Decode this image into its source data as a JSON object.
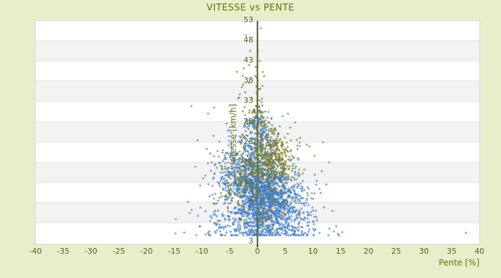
{
  "title": "VITESSE vs PENTE",
  "chart_data": {
    "type": "scatter",
    "title": "VITESSE vs PENTE",
    "xlabel": "Pente [%]",
    "ylabel": "Vitesse [km/h]",
    "xlim": [
      -40,
      40
    ],
    "ylim": [
      3,
      53
    ],
    "x_ticks": [
      -40,
      -35,
      -30,
      -25,
      -20,
      -15,
      -10,
      -5,
      0,
      5,
      10,
      15,
      20,
      25,
      30,
      35,
      40
    ],
    "y_ticks": [
      53,
      48,
      43,
      38,
      33,
      28,
      23,
      18,
      13,
      8,
      3
    ],
    "grid": "alternating horizontal bands every 5 units",
    "legend": "none",
    "marker": "small 3px plus/diamond",
    "seed": 42,
    "colors": {
      "background": "#e9edca",
      "title": "#667408",
      "tick": "#555f1a",
      "band_light": "#ffffff",
      "band_dark": "#f3f3f3",
      "band_line": "#e2e2e2",
      "plot_border": "#d4d4d4",
      "axis_line": "#4b5412",
      "series_blue": "#3f7fd6",
      "series_olive": "#7a7a1d"
    },
    "series": [
      {
        "name": "blue-points",
        "color": "#3f7fd6",
        "x_range": [
          -15.8,
          15.8
        ],
        "y_range": [
          4.5,
          37
        ],
        "clusters": [
          {
            "n": 850,
            "x_mean": 0.8,
            "x_sd": 2.1,
            "y_mean": 14.0,
            "y_sd": 4.0
          },
          {
            "n": 500,
            "x_mean": -2.6,
            "x_sd": 2.6,
            "y_mean": 17.0,
            "y_sd": 4.5
          },
          {
            "n": 430,
            "x_mean": 4.3,
            "x_sd": 2.7,
            "y_mean": 12.5,
            "y_sd": 3.6
          },
          {
            "n": 300,
            "x_mean": 0.5,
            "x_sd": 5.0,
            "y_mean": 7.0,
            "y_sd": 2.2
          },
          {
            "n": 160,
            "x_mean": 0.3,
            "x_sd": 1.5,
            "y_mean": 25.5,
            "y_sd": 2.8
          },
          {
            "n": 55,
            "x_mean": 0.1,
            "x_sd": 1.3,
            "y_mean": 30.5,
            "y_sd": 1.6
          },
          {
            "n": 60,
            "x_mean": 1.0,
            "x_sd": 6.5,
            "y_mean": 5.2,
            "y_sd": 0.5
          }
        ],
        "outliers": [
          [
            37.6,
            5.0
          ],
          [
            15.3,
            5.2
          ],
          [
            14.5,
            4.8
          ],
          [
            -14.8,
            4.9
          ],
          [
            -13.2,
            5.1
          ],
          [
            -11.9,
            33.7
          ],
          [
            -8.9,
            32.0
          ],
          [
            -7.8,
            33.4
          ],
          [
            0.0,
            37.1
          ],
          [
            -3.5,
            35.5
          ],
          [
            12.9,
            21.0
          ],
          [
            13.5,
            10.0
          ],
          [
            -12.5,
            12.0
          ],
          [
            -11.2,
            20.0
          ],
          [
            14.2,
            6.5
          ],
          [
            -10.8,
            26.0
          ],
          [
            11.8,
            25.5
          ]
        ]
      },
      {
        "name": "olive-points",
        "color": "#7a7a1d",
        "x_range": [
          -12,
          13
        ],
        "y_range": [
          4.6,
          50
        ],
        "clusters": [
          {
            "n": 300,
            "x_mean": 1.6,
            "x_sd": 2.0,
            "y_mean": 21.5,
            "y_sd": 3.2
          },
          {
            "n": 120,
            "x_mean": 4.6,
            "x_sd": 2.0,
            "y_mean": 22.0,
            "y_sd": 2.8
          },
          {
            "n": 150,
            "x_mean": -3.2,
            "x_sd": 2.4,
            "y_mean": 17.5,
            "y_sd": 3.8
          },
          {
            "n": 130,
            "x_mean": 0.8,
            "x_sd": 3.4,
            "y_mean": 11.0,
            "y_sd": 3.0
          },
          {
            "n": 70,
            "x_mean": 0.3,
            "x_sd": 1.0,
            "y_mean": 29.5,
            "y_sd": 2.8
          },
          {
            "n": 26,
            "x_mean": -0.8,
            "x_sd": 1.3,
            "y_mean": 38.0,
            "y_sd": 4.0
          }
        ],
        "outliers": [
          [
            0.6,
            51.3
          ],
          [
            -2.1,
            49.7
          ],
          [
            -1.3,
            46.2
          ],
          [
            0.1,
            46.2
          ],
          [
            0.4,
            43.9
          ],
          [
            -1.5,
            43.0
          ],
          [
            -0.3,
            42.6
          ],
          [
            1.2,
            40.5
          ],
          [
            -2.8,
            38.0
          ],
          [
            -2.2,
            36.8
          ],
          [
            8.9,
            25.0
          ],
          [
            10.3,
            22.5
          ],
          [
            11.6,
            19.0
          ],
          [
            -8.5,
            23.0
          ],
          [
            -9.4,
            18.0
          ],
          [
            9.8,
            14.0
          ],
          [
            -7.9,
            27.0
          ],
          [
            6.8,
            30.0
          ],
          [
            5.5,
            32.0
          ],
          [
            12.4,
            16.0
          ]
        ]
      }
    ]
  }
}
